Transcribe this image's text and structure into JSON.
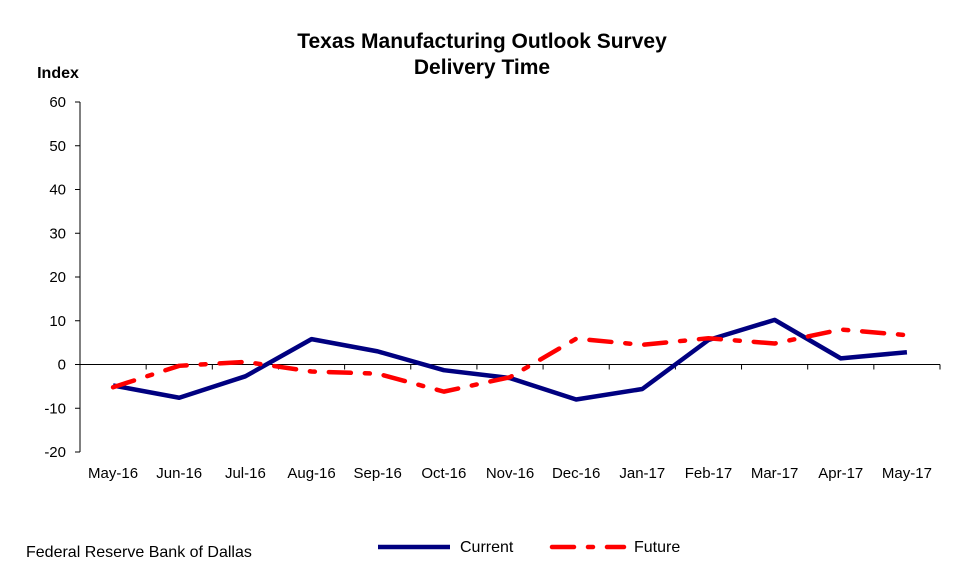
{
  "source": "Federal Reserve Bank of Dallas",
  "chart_data": {
    "type": "line",
    "title": "Texas Manufacturing Outlook Survey",
    "subtitle": "Delivery Time",
    "ylabel": "Index",
    "xlabel": "",
    "ylim": [
      -20,
      60
    ],
    "yticks": [
      -20,
      -10,
      0,
      10,
      20,
      30,
      40,
      50,
      60
    ],
    "categories": [
      "May-16",
      "Jun-16",
      "Jul-16",
      "Aug-16",
      "Sep-16",
      "Oct-16",
      "Nov-16",
      "Dec-16",
      "Jan-17",
      "Feb-17",
      "Mar-17",
      "Apr-17",
      "May-17"
    ],
    "grid": false,
    "legend_position": "bottom",
    "series": [
      {
        "name": "Current",
        "color": "#000080",
        "style": "solid",
        "values": [
          -4.8,
          -7.6,
          -2.7,
          5.8,
          3.0,
          -1.3,
          -3.1,
          -8.0,
          -5.6,
          5.6,
          10.2,
          1.4,
          2.8
        ]
      },
      {
        "name": "Future",
        "color": "#ff0000",
        "style": "dash-dot",
        "values": [
          -5.2,
          -0.3,
          0.6,
          -1.6,
          -2.1,
          -6.2,
          -2.9,
          5.9,
          4.5,
          6.0,
          4.8,
          8.0,
          6.7
        ]
      }
    ]
  }
}
